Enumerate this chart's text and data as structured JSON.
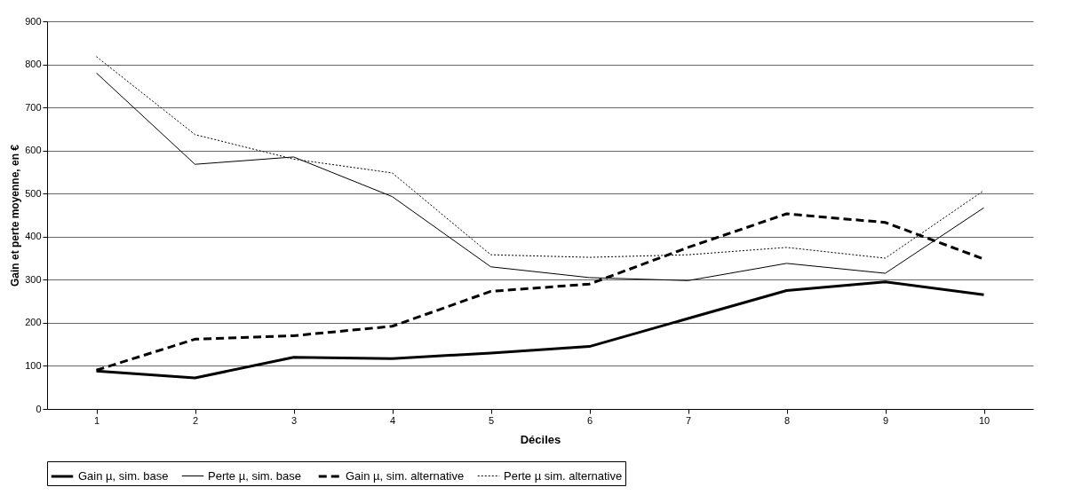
{
  "chart_data": {
    "type": "line",
    "xlabel": "Déciles",
    "ylabel": "Gain et perte moyenne, en €",
    "categories": [
      "1",
      "2",
      "3",
      "4",
      "5",
      "6",
      "7",
      "8",
      "9",
      "10"
    ],
    "series": [
      {
        "name": "Gain µ, sim. base",
        "color": "#000000",
        "line_style": "solid",
        "values": [
          88,
          72,
          120,
          117,
          130,
          145,
          210,
          275,
          295,
          265
        ]
      },
      {
        "name": "Perte µ, sim. base",
        "color": "#000000",
        "line_style": "solid",
        "values": [
          780,
          568,
          585,
          493,
          330,
          305,
          298,
          338,
          315,
          467
        ]
      },
      {
        "name": "Gain µ, sim. alternative",
        "color": "#000000",
        "line_style": "dashed",
        "values": [
          90,
          162,
          170,
          192,
          273,
          290,
          375,
          453,
          433,
          348
        ]
      },
      {
        "name": "Perte µ sim. alternative",
        "color": "#000000",
        "line_style": "dotted",
        "values": [
          818,
          637,
          580,
          548,
          358,
          352,
          358,
          375,
          350,
          507
        ]
      }
    ],
    "ylim": [
      0,
      900
    ],
    "yticks": [
      0,
      100,
      200,
      300,
      400,
      500,
      600,
      700,
      800,
      900
    ],
    "grid": "y",
    "legend": "bottom",
    "marker": "none"
  }
}
